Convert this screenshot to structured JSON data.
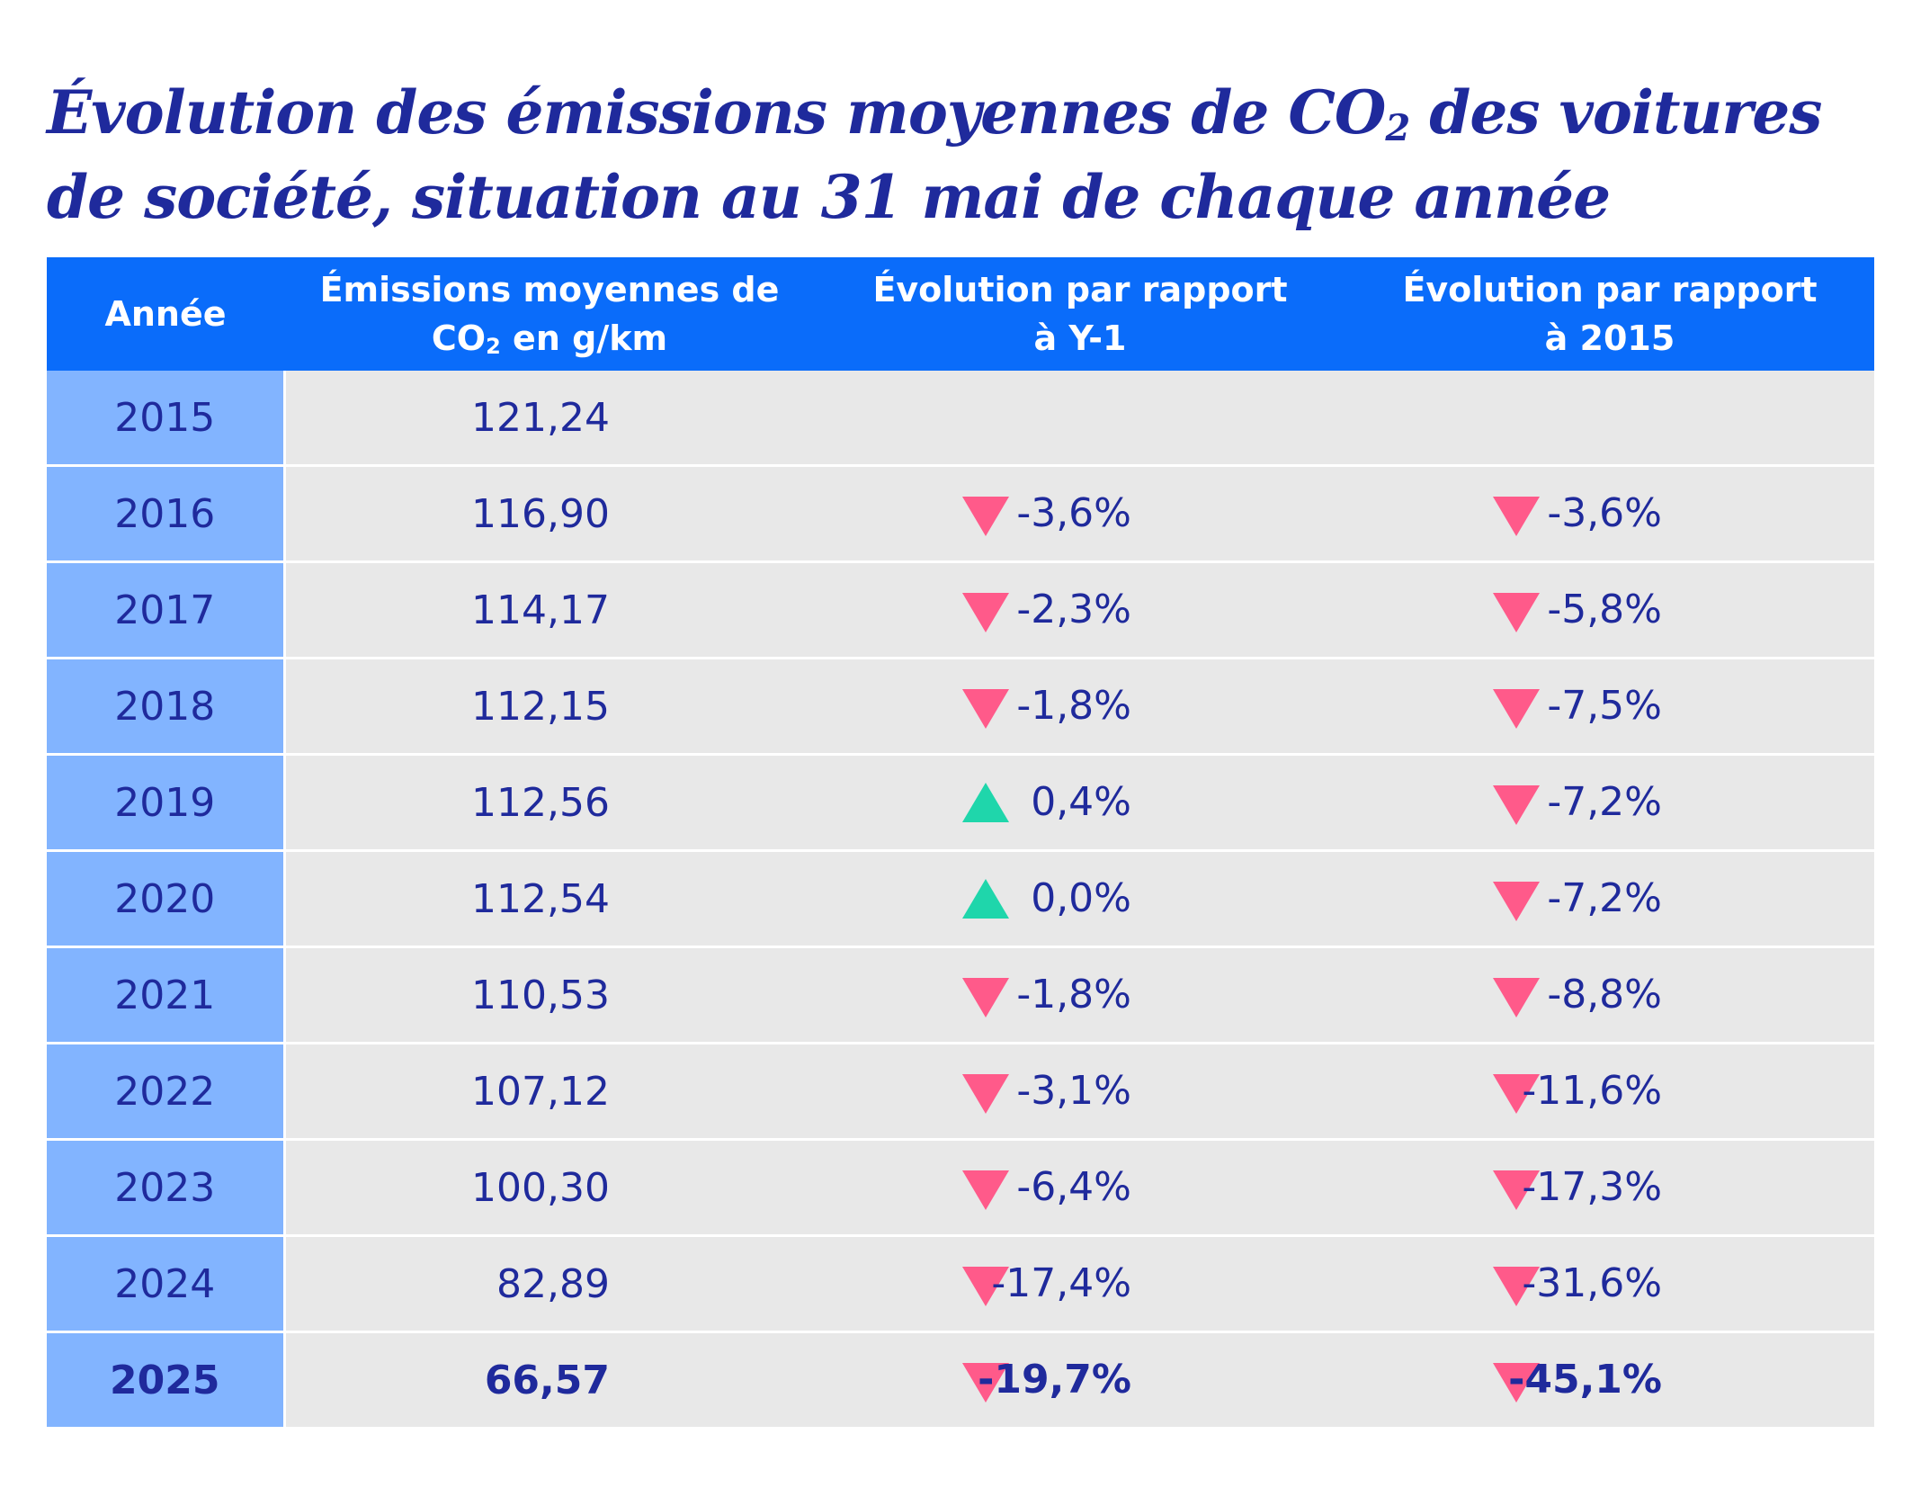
{
  "title": {
    "line1_pre": "Évolution des émissions moyennes de CO",
    "line1_sub": "2",
    "line1_post": " des voitures",
    "line2": "de société, situation au 31 mai de chaque année"
  },
  "colors": {
    "header": "#0a6cfa",
    "year_cell": "#82b4ff",
    "row": "#e8e8e8",
    "text": "#1f2a9c",
    "down": "#ff5a8a",
    "up": "#1fd6ab"
  },
  "chart_data": {
    "type": "table",
    "columns": [
      "Année",
      "Émissions moyennes de CO2 en g/km",
      "Évolution par rapport à Y-1",
      "Évolution par rapport à 2015"
    ],
    "header": {
      "year": "Année",
      "em_pre": "Émissions moyennes de",
      "em_co": "CO",
      "em_sub": "2",
      "em_post": " en g/km",
      "y1_line1": "Évolution par rapport",
      "y1_line2": "à Y-1",
      "b15_line1": "Évolution par rapport",
      "b15_line2": "à 2015"
    },
    "rows": [
      {
        "year": "2015",
        "value": "121,24",
        "vs_prev": "",
        "vs_prev_dir": "",
        "vs_2015": "",
        "vs_2015_dir": ""
      },
      {
        "year": "2016",
        "value": "116,90",
        "vs_prev": "-3,6%",
        "vs_prev_dir": "down",
        "vs_2015": "-3,6%",
        "vs_2015_dir": "down"
      },
      {
        "year": "2017",
        "value": "114,17",
        "vs_prev": "-2,3%",
        "vs_prev_dir": "down",
        "vs_2015": "-5,8%",
        "vs_2015_dir": "down"
      },
      {
        "year": "2018",
        "value": "112,15",
        "vs_prev": "-1,8%",
        "vs_prev_dir": "down",
        "vs_2015": "-7,5%",
        "vs_2015_dir": "down"
      },
      {
        "year": "2019",
        "value": "112,56",
        "vs_prev": "0,4%",
        "vs_prev_dir": "up",
        "vs_2015": "-7,2%",
        "vs_2015_dir": "down"
      },
      {
        "year": "2020",
        "value": "112,54",
        "vs_prev": "0,0%",
        "vs_prev_dir": "up",
        "vs_2015": "-7,2%",
        "vs_2015_dir": "down"
      },
      {
        "year": "2021",
        "value": "110,53",
        "vs_prev": "-1,8%",
        "vs_prev_dir": "down",
        "vs_2015": "-8,8%",
        "vs_2015_dir": "down"
      },
      {
        "year": "2022",
        "value": "107,12",
        "vs_prev": "-3,1%",
        "vs_prev_dir": "down",
        "vs_2015": "-11,6%",
        "vs_2015_dir": "down"
      },
      {
        "year": "2023",
        "value": "100,30",
        "vs_prev": "-6,4%",
        "vs_prev_dir": "down",
        "vs_2015": "-17,3%",
        "vs_2015_dir": "down"
      },
      {
        "year": "2024",
        "value": "82,89",
        "vs_prev": "-17,4%",
        "vs_prev_dir": "down",
        "vs_2015": "-31,6%",
        "vs_2015_dir": "down"
      },
      {
        "year": "2025",
        "value": "66,57",
        "vs_prev": "-19,7%",
        "vs_prev_dir": "down",
        "vs_2015": "-45,1%",
        "vs_2015_dir": "down",
        "bold": true
      }
    ]
  }
}
